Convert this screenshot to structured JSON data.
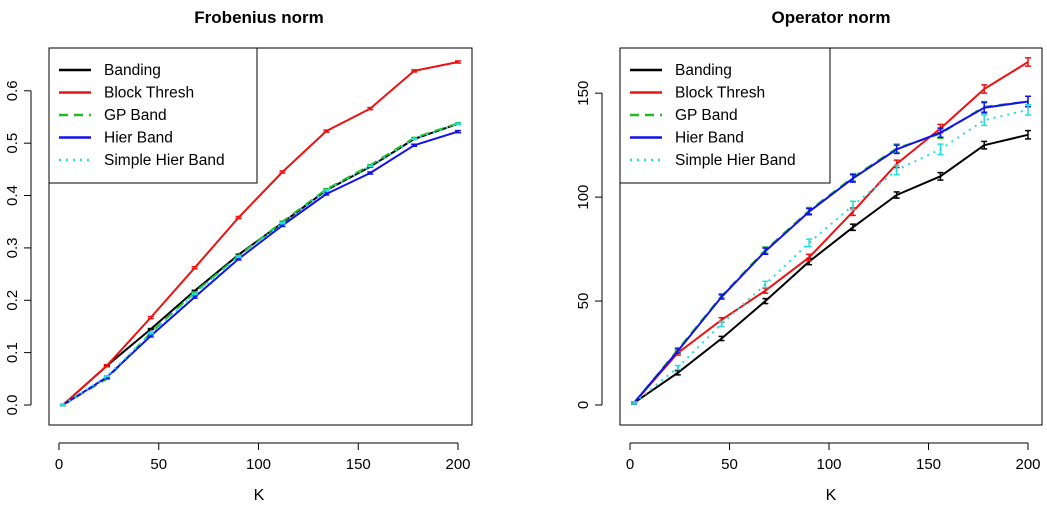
{
  "chart_data": [
    {
      "type": "line",
      "title": "Frobenius norm",
      "xlabel": "K",
      "ylabel": "",
      "x": [
        2,
        24,
        46,
        68,
        90,
        112,
        134,
        156,
        178,
        200
      ],
      "xlim": [
        2,
        200
      ],
      "ylim": [
        0,
        0.655
      ],
      "xticks": [
        0,
        50,
        100,
        150,
        200
      ],
      "yticks": [
        0.0,
        0.1,
        0.2,
        0.3,
        0.4,
        0.5,
        0.6
      ],
      "ytick_labels": [
        "0.0",
        "0.1",
        "0.2",
        "0.3",
        "0.4",
        "0.5",
        "0.6"
      ],
      "legend_position": "top-left",
      "grid": false,
      "series": [
        {
          "name": "Banding",
          "color": "#000000",
          "dash": "solid",
          "values": [
            0.0,
            0.075,
            0.145,
            0.218,
            0.287,
            0.348,
            0.41,
            0.455,
            0.508,
            0.537
          ],
          "err": [
            0.001,
            0.001,
            0.001,
            0.001,
            0.001,
            0.001,
            0.001,
            0.001,
            0.001,
            0.001
          ]
        },
        {
          "name": "Block Thresh",
          "color": "#ee1111",
          "dash": "solid",
          "values": [
            0.0,
            0.075,
            0.167,
            0.262,
            0.358,
            0.445,
            0.523,
            0.566,
            0.638,
            0.655
          ],
          "err": [
            0.001,
            0.002,
            0.002,
            0.002,
            0.002,
            0.002,
            0.002,
            0.002,
            0.002,
            0.002
          ]
        },
        {
          "name": "GP Band",
          "color": "#22bb22",
          "dash": "dashed",
          "values": [
            0.0,
            0.05,
            0.138,
            0.215,
            0.285,
            0.35,
            0.412,
            0.458,
            0.51,
            0.538
          ],
          "err": [
            0.001,
            0.001,
            0.001,
            0.001,
            0.001,
            0.001,
            0.001,
            0.001,
            0.001,
            0.001
          ]
        },
        {
          "name": "Hier Band",
          "color": "#1111ee",
          "dash": "solid",
          "values": [
            0.0,
            0.053,
            0.132,
            0.206,
            0.279,
            0.343,
            0.403,
            0.443,
            0.496,
            0.522
          ],
          "err": [
            0.001,
            0.002,
            0.002,
            0.002,
            0.002,
            0.002,
            0.002,
            0.002,
            0.002,
            0.002
          ]
        },
        {
          "name": "Simple Hier Band",
          "color": "#22dddd",
          "dash": "dotted",
          "values": [
            0.0,
            0.055,
            0.137,
            0.212,
            0.283,
            0.347,
            0.41,
            0.456,
            0.508,
            0.537
          ],
          "err": [
            0.001,
            0.001,
            0.001,
            0.001,
            0.001,
            0.001,
            0.001,
            0.001,
            0.001,
            0.001
          ]
        }
      ]
    },
    {
      "type": "line",
      "title": "Operator norm",
      "xlabel": "K",
      "ylabel": "",
      "x": [
        2,
        24,
        46,
        68,
        90,
        112,
        134,
        156,
        178,
        200
      ],
      "xlim": [
        2,
        200
      ],
      "ylim": [
        0,
        165
      ],
      "xticks": [
        0,
        50,
        100,
        150,
        200
      ],
      "yticks": [
        0,
        50,
        100,
        150
      ],
      "ytick_labels": [
        "0",
        "50",
        "100",
        "150"
      ],
      "legend_position": "top-left",
      "grid": false,
      "series": [
        {
          "name": "Banding",
          "color": "#000000",
          "dash": "solid",
          "values": [
            1.0,
            15.5,
            32.0,
            50.0,
            69.0,
            85.5,
            101.0,
            110.0,
            125.0,
            130.0
          ],
          "err": [
            0.5,
            1.0,
            1.0,
            1.2,
            1.5,
            1.5,
            1.5,
            1.8,
            1.8,
            2.0
          ]
        },
        {
          "name": "Block Thresh",
          "color": "#ee1111",
          "dash": "solid",
          "values": [
            1.0,
            25.0,
            41.0,
            55.0,
            71.0,
            93.0,
            116.0,
            133.0,
            152.0,
            165.0
          ],
          "err": [
            0.5,
            1.0,
            1.0,
            1.2,
            1.5,
            1.8,
            1.8,
            2.0,
            2.0,
            2.0
          ]
        },
        {
          "name": "GP Band",
          "color": "#22bb22",
          "dash": "dashed",
          "values": [
            1.0,
            26.5,
            52.5,
            74.5,
            93.5,
            109.5,
            123.5,
            130.5,
            143.5,
            146.0
          ],
          "err": [
            0.5,
            1.0,
            1.0,
            1.5,
            1.5,
            1.8,
            2.0,
            2.2,
            2.5,
            2.5
          ]
        },
        {
          "name": "Hier Band",
          "color": "#1111ee",
          "dash": "solid",
          "values": [
            1.0,
            26.0,
            52.0,
            74.0,
            93.0,
            109.0,
            123.0,
            131.0,
            143.0,
            146.0
          ],
          "err": [
            0.5,
            1.0,
            1.0,
            1.5,
            1.5,
            1.8,
            2.0,
            2.2,
            2.5,
            2.5
          ]
        },
        {
          "name": "Simple Hier Band",
          "color": "#22dddd",
          "dash": "dotted",
          "values": [
            1.0,
            18.0,
            39.0,
            58.0,
            78.0,
            96.0,
            113.0,
            123.0,
            137.0,
            142.0
          ],
          "err": [
            0.5,
            1.0,
            1.2,
            1.5,
            1.8,
            2.0,
            2.2,
            2.5,
            2.5,
            2.5
          ]
        }
      ]
    }
  ]
}
